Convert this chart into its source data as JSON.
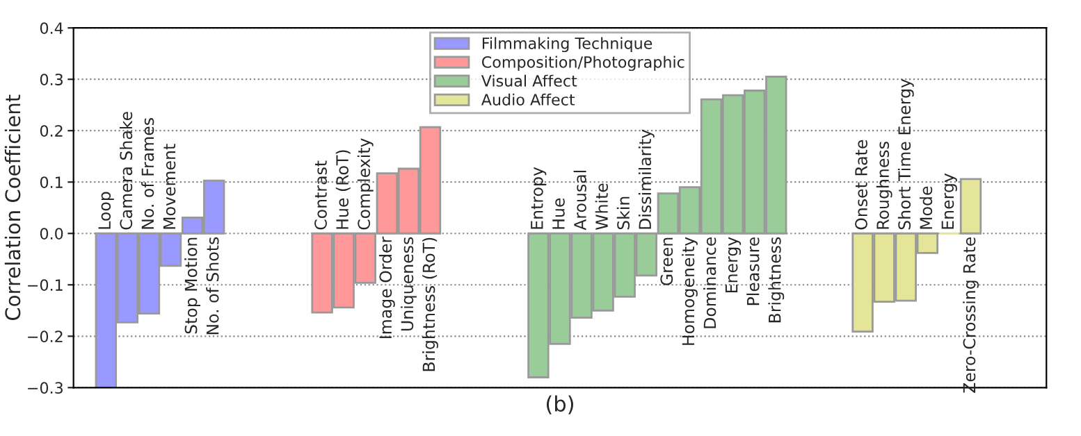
{
  "chart_data": {
    "type": "bar",
    "xlabel": "(b)",
    "ylabel": "Correlation Coefficient",
    "categories": [
      null,
      "Loop",
      "Camera Shake",
      "No. of Frames",
      "Movement",
      "Stop Motion",
      "No. of Shots",
      null,
      null,
      null,
      null,
      "Contrast",
      "Hue (RoT)",
      "Complexity",
      "Image Order",
      "Uniqueness",
      "Brightness (RoT)",
      null,
      null,
      null,
      null,
      "Entropy",
      "Hue",
      "Arousal",
      "White",
      "Skin",
      "Dissimilarity",
      "Green",
      "Homogeneity",
      "Dominance",
      "Energy",
      "Pleasure",
      "Brightness",
      null,
      null,
      null,
      "Onset Rate",
      "Roughness",
      "Short Time Energy",
      "Mode",
      "Energy",
      "Zero-Crossing Rate",
      null,
      null,
      null
    ],
    "series": [
      {
        "name": "Filmmaking Technique",
        "color": "#9999ff",
        "values": [
          null,
          -0.3,
          -0.173,
          -0.156,
          -0.063,
          0.031,
          0.103,
          null,
          null,
          null,
          null,
          null,
          null,
          null,
          null,
          null,
          null,
          null,
          null,
          null,
          null,
          null,
          null,
          null,
          null,
          null,
          null,
          null,
          null,
          null,
          null,
          null,
          null,
          null,
          null,
          null,
          null,
          null,
          null,
          null,
          null,
          null,
          null,
          null,
          null
        ]
      },
      {
        "name": "Composition/Photographic",
        "color": "#ff9999",
        "values": [
          null,
          null,
          null,
          null,
          null,
          null,
          null,
          null,
          null,
          null,
          null,
          -0.154,
          -0.144,
          -0.096,
          0.117,
          0.126,
          0.207,
          null,
          null,
          null,
          null,
          null,
          null,
          null,
          null,
          null,
          null,
          null,
          null,
          null,
          null,
          null,
          null,
          null,
          null,
          null,
          null,
          null,
          null,
          null,
          null,
          null,
          null,
          null,
          null
        ]
      },
      {
        "name": "Visual Affect",
        "color": "#99cc99",
        "values": [
          null,
          null,
          null,
          null,
          null,
          null,
          null,
          null,
          null,
          null,
          null,
          null,
          null,
          null,
          null,
          null,
          null,
          null,
          null,
          null,
          null,
          -0.28,
          -0.215,
          -0.164,
          -0.15,
          -0.123,
          -0.082,
          0.078,
          0.09,
          0.261,
          0.269,
          0.278,
          0.305,
          null,
          null,
          null,
          null,
          null,
          null,
          null,
          null,
          null,
          null,
          null,
          null
        ]
      },
      {
        "name": "Audio Affect",
        "color": "#e5e599",
        "values": [
          null,
          null,
          null,
          null,
          null,
          null,
          null,
          null,
          null,
          null,
          null,
          null,
          null,
          null,
          null,
          null,
          null,
          null,
          null,
          null,
          null,
          null,
          null,
          null,
          null,
          null,
          null,
          null,
          null,
          null,
          null,
          null,
          null,
          null,
          null,
          null,
          -0.191,
          -0.133,
          -0.131,
          -0.038,
          0.0,
          0.106,
          null,
          null,
          null
        ]
      }
    ],
    "ylim": [
      -0.3,
      0.4
    ],
    "yticks": [
      {
        "value": -0.3,
        "label": "−0.3"
      },
      {
        "value": -0.2,
        "label": "−0.2"
      },
      {
        "value": -0.1,
        "label": "−0.1"
      },
      {
        "value": 0.0,
        "label": "0.0"
      },
      0.1,
      0.2,
      0.3,
      0.4
    ],
    "grid": "y",
    "legend": "top"
  }
}
